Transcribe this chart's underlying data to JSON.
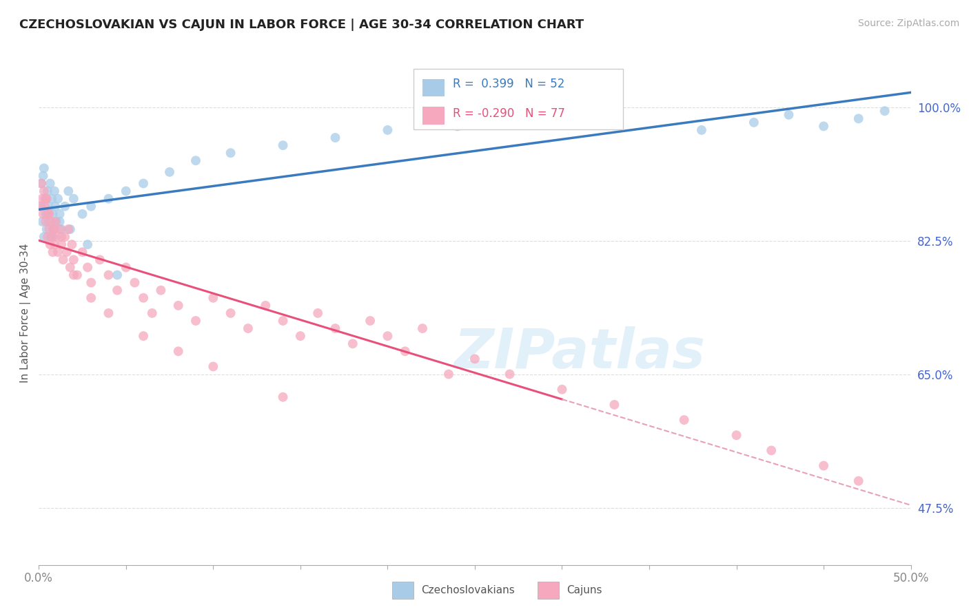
{
  "title": "CZECHOSLOVAKIAN VS CAJUN IN LABOR FORCE | AGE 30-34 CORRELATION CHART",
  "source": "Source: ZipAtlas.com",
  "ylabel": "In Labor Force | Age 30-34",
  "xlim": [
    0.0,
    50.0
  ],
  "ylim": [
    40.0,
    106.0
  ],
  "ytick_positions": [
    47.5,
    65.0,
    82.5,
    100.0
  ],
  "ytick_labels": [
    "47.5%",
    "65.0%",
    "82.5%",
    "100.0%"
  ],
  "r_czech": 0.399,
  "n_czech": 52,
  "r_cajun": -0.29,
  "n_cajun": 77,
  "blue_scatter_color": "#a8cce8",
  "blue_line_color": "#3a7abf",
  "pink_scatter_color": "#f5a8be",
  "pink_line_color": "#e8507a",
  "pink_dash_color": "#e8a0b8",
  "watermark": "ZIPatlas",
  "background_color": "#ffffff",
  "grid_color": "#dddddd",
  "ytick_color": "#4466cc",
  "xtick_color": "#888888",
  "legend_box_color": "#dddddd",
  "czech_x": [
    0.1,
    0.15,
    0.2,
    0.25,
    0.3,
    0.35,
    0.4,
    0.45,
    0.5,
    0.55,
    0.6,
    0.65,
    0.7,
    0.75,
    0.8,
    0.85,
    0.9,
    0.95,
    1.0,
    1.1,
    1.2,
    1.3,
    1.5,
    1.7,
    2.0,
    2.5,
    3.0,
    4.0,
    5.0,
    6.0,
    7.5,
    9.0,
    11.0,
    14.0,
    17.0,
    20.0,
    24.0,
    28.0,
    33.0,
    38.0,
    41.0,
    43.0,
    45.0,
    47.0,
    48.5,
    0.3,
    0.5,
    0.8,
    1.2,
    1.8,
    2.8,
    4.5
  ],
  "czech_y": [
    87.0,
    90.0,
    85.0,
    91.0,
    83.0,
    88.0,
    86.0,
    84.0,
    89.0,
    87.0,
    85.0,
    90.0,
    83.0,
    88.0,
    86.0,
    84.0,
    89.0,
    87.0,
    85.0,
    88.0,
    86.0,
    84.0,
    87.0,
    89.0,
    88.0,
    86.0,
    87.0,
    88.0,
    89.0,
    90.0,
    91.5,
    93.0,
    94.0,
    95.0,
    96.0,
    97.0,
    97.5,
    98.0,
    98.5,
    97.0,
    98.0,
    99.0,
    97.5,
    98.5,
    99.5,
    92.0,
    86.0,
    83.0,
    85.0,
    84.0,
    82.0,
    78.0
  ],
  "cajun_x": [
    0.1,
    0.15,
    0.2,
    0.25,
    0.3,
    0.35,
    0.4,
    0.45,
    0.5,
    0.55,
    0.6,
    0.65,
    0.7,
    0.75,
    0.8,
    0.85,
    0.9,
    0.95,
    1.0,
    1.1,
    1.2,
    1.3,
    1.4,
    1.5,
    1.6,
    1.7,
    1.8,
    1.9,
    2.0,
    2.2,
    2.5,
    2.8,
    3.0,
    3.5,
    4.0,
    4.5,
    5.0,
    5.5,
    6.0,
    6.5,
    7.0,
    8.0,
    9.0,
    10.0,
    11.0,
    12.0,
    13.0,
    14.0,
    15.0,
    16.0,
    17.0,
    18.0,
    19.0,
    20.0,
    21.0,
    22.0,
    23.5,
    25.0,
    27.0,
    30.0,
    33.0,
    37.0,
    40.0,
    42.0,
    45.0,
    47.0,
    0.4,
    0.6,
    0.9,
    1.3,
    2.0,
    3.0,
    4.0,
    6.0,
    8.0,
    10.0,
    14.0
  ],
  "cajun_y": [
    87.0,
    90.0,
    88.0,
    86.0,
    89.0,
    87.0,
    85.0,
    88.0,
    83.0,
    86.0,
    84.0,
    82.0,
    85.0,
    83.0,
    81.0,
    84.0,
    82.0,
    85.0,
    83.0,
    81.0,
    84.0,
    82.0,
    80.0,
    83.0,
    81.0,
    84.0,
    79.0,
    82.0,
    80.0,
    78.0,
    81.0,
    79.0,
    77.0,
    80.0,
    78.0,
    76.0,
    79.0,
    77.0,
    75.0,
    73.0,
    76.0,
    74.0,
    72.0,
    75.0,
    73.0,
    71.0,
    74.0,
    72.0,
    70.0,
    73.0,
    71.0,
    69.0,
    72.0,
    70.0,
    68.0,
    71.0,
    65.0,
    67.0,
    65.0,
    63.0,
    61.0,
    59.0,
    57.0,
    55.0,
    53.0,
    51.0,
    88.0,
    86.0,
    84.0,
    83.0,
    78.0,
    75.0,
    73.0,
    70.0,
    68.0,
    66.0,
    62.0
  ]
}
